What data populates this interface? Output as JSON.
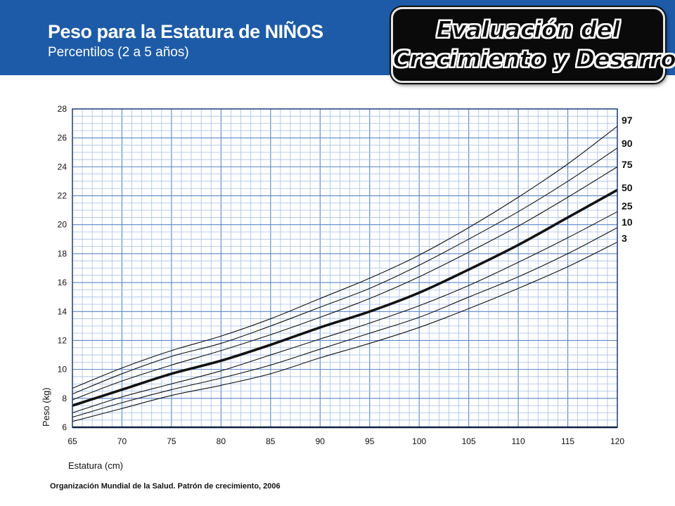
{
  "header": {
    "title": "Peso para la Estatura de NIÑOS",
    "subtitle": "Percentilos (2 a 5 años)"
  },
  "badge": {
    "line1": "Evaluación del",
    "line2": "Crecimiento y Desarrollo"
  },
  "source": "Organización Mundial de la Salud. Patrón de crecimiento, 2006",
  "colors": {
    "header_band": "#1d5ba8",
    "grid_minor": "#a6bfe6",
    "grid_major": "#5a86c8",
    "curve": "#111111"
  },
  "chart_data": {
    "type": "line",
    "xlabel": "Estatura (cm)",
    "ylabel": "Peso (kg)",
    "xlim": [
      65,
      120
    ],
    "ylim": [
      6,
      28
    ],
    "x_ticks": [
      65,
      70,
      75,
      80,
      85,
      90,
      95,
      100,
      105,
      110,
      115,
      120
    ],
    "y_ticks": [
      6,
      8,
      10,
      12,
      14,
      16,
      18,
      20,
      22,
      24,
      26,
      28
    ],
    "grid": true,
    "x": [
      65,
      70,
      75,
      80,
      85,
      90,
      95,
      100,
      105,
      110,
      115,
      120
    ],
    "series": [
      {
        "name": "97",
        "values": [
          8.7,
          10.1,
          11.3,
          12.3,
          13.5,
          14.9,
          16.3,
          17.9,
          19.8,
          21.9,
          24.2,
          26.8
        ]
      },
      {
        "name": "90",
        "values": [
          8.3,
          9.7,
          10.9,
          11.8,
          13.0,
          14.3,
          15.6,
          17.2,
          19.0,
          20.9,
          23.0,
          25.3
        ]
      },
      {
        "name": "75",
        "values": [
          7.9,
          9.2,
          10.3,
          11.3,
          12.4,
          13.6,
          14.9,
          16.4,
          18.1,
          19.9,
          21.9,
          24.0
        ]
      },
      {
        "name": "50",
        "values": [
          7.5,
          8.6,
          9.7,
          10.6,
          11.7,
          12.9,
          14.0,
          15.3,
          16.9,
          18.6,
          20.5,
          22.4
        ]
      },
      {
        "name": "25",
        "values": [
          7.0,
          8.1,
          9.0,
          9.9,
          11.0,
          12.1,
          13.2,
          14.4,
          15.8,
          17.4,
          19.1,
          20.9
        ]
      },
      {
        "name": "10",
        "values": [
          6.7,
          7.7,
          8.6,
          9.4,
          10.3,
          11.4,
          12.5,
          13.6,
          15.0,
          16.4,
          18.0,
          19.8
        ]
      },
      {
        "name": "3",
        "values": [
          6.4,
          7.3,
          8.2,
          8.9,
          9.7,
          10.8,
          11.8,
          12.9,
          14.2,
          15.6,
          17.1,
          18.8
        ]
      }
    ]
  }
}
